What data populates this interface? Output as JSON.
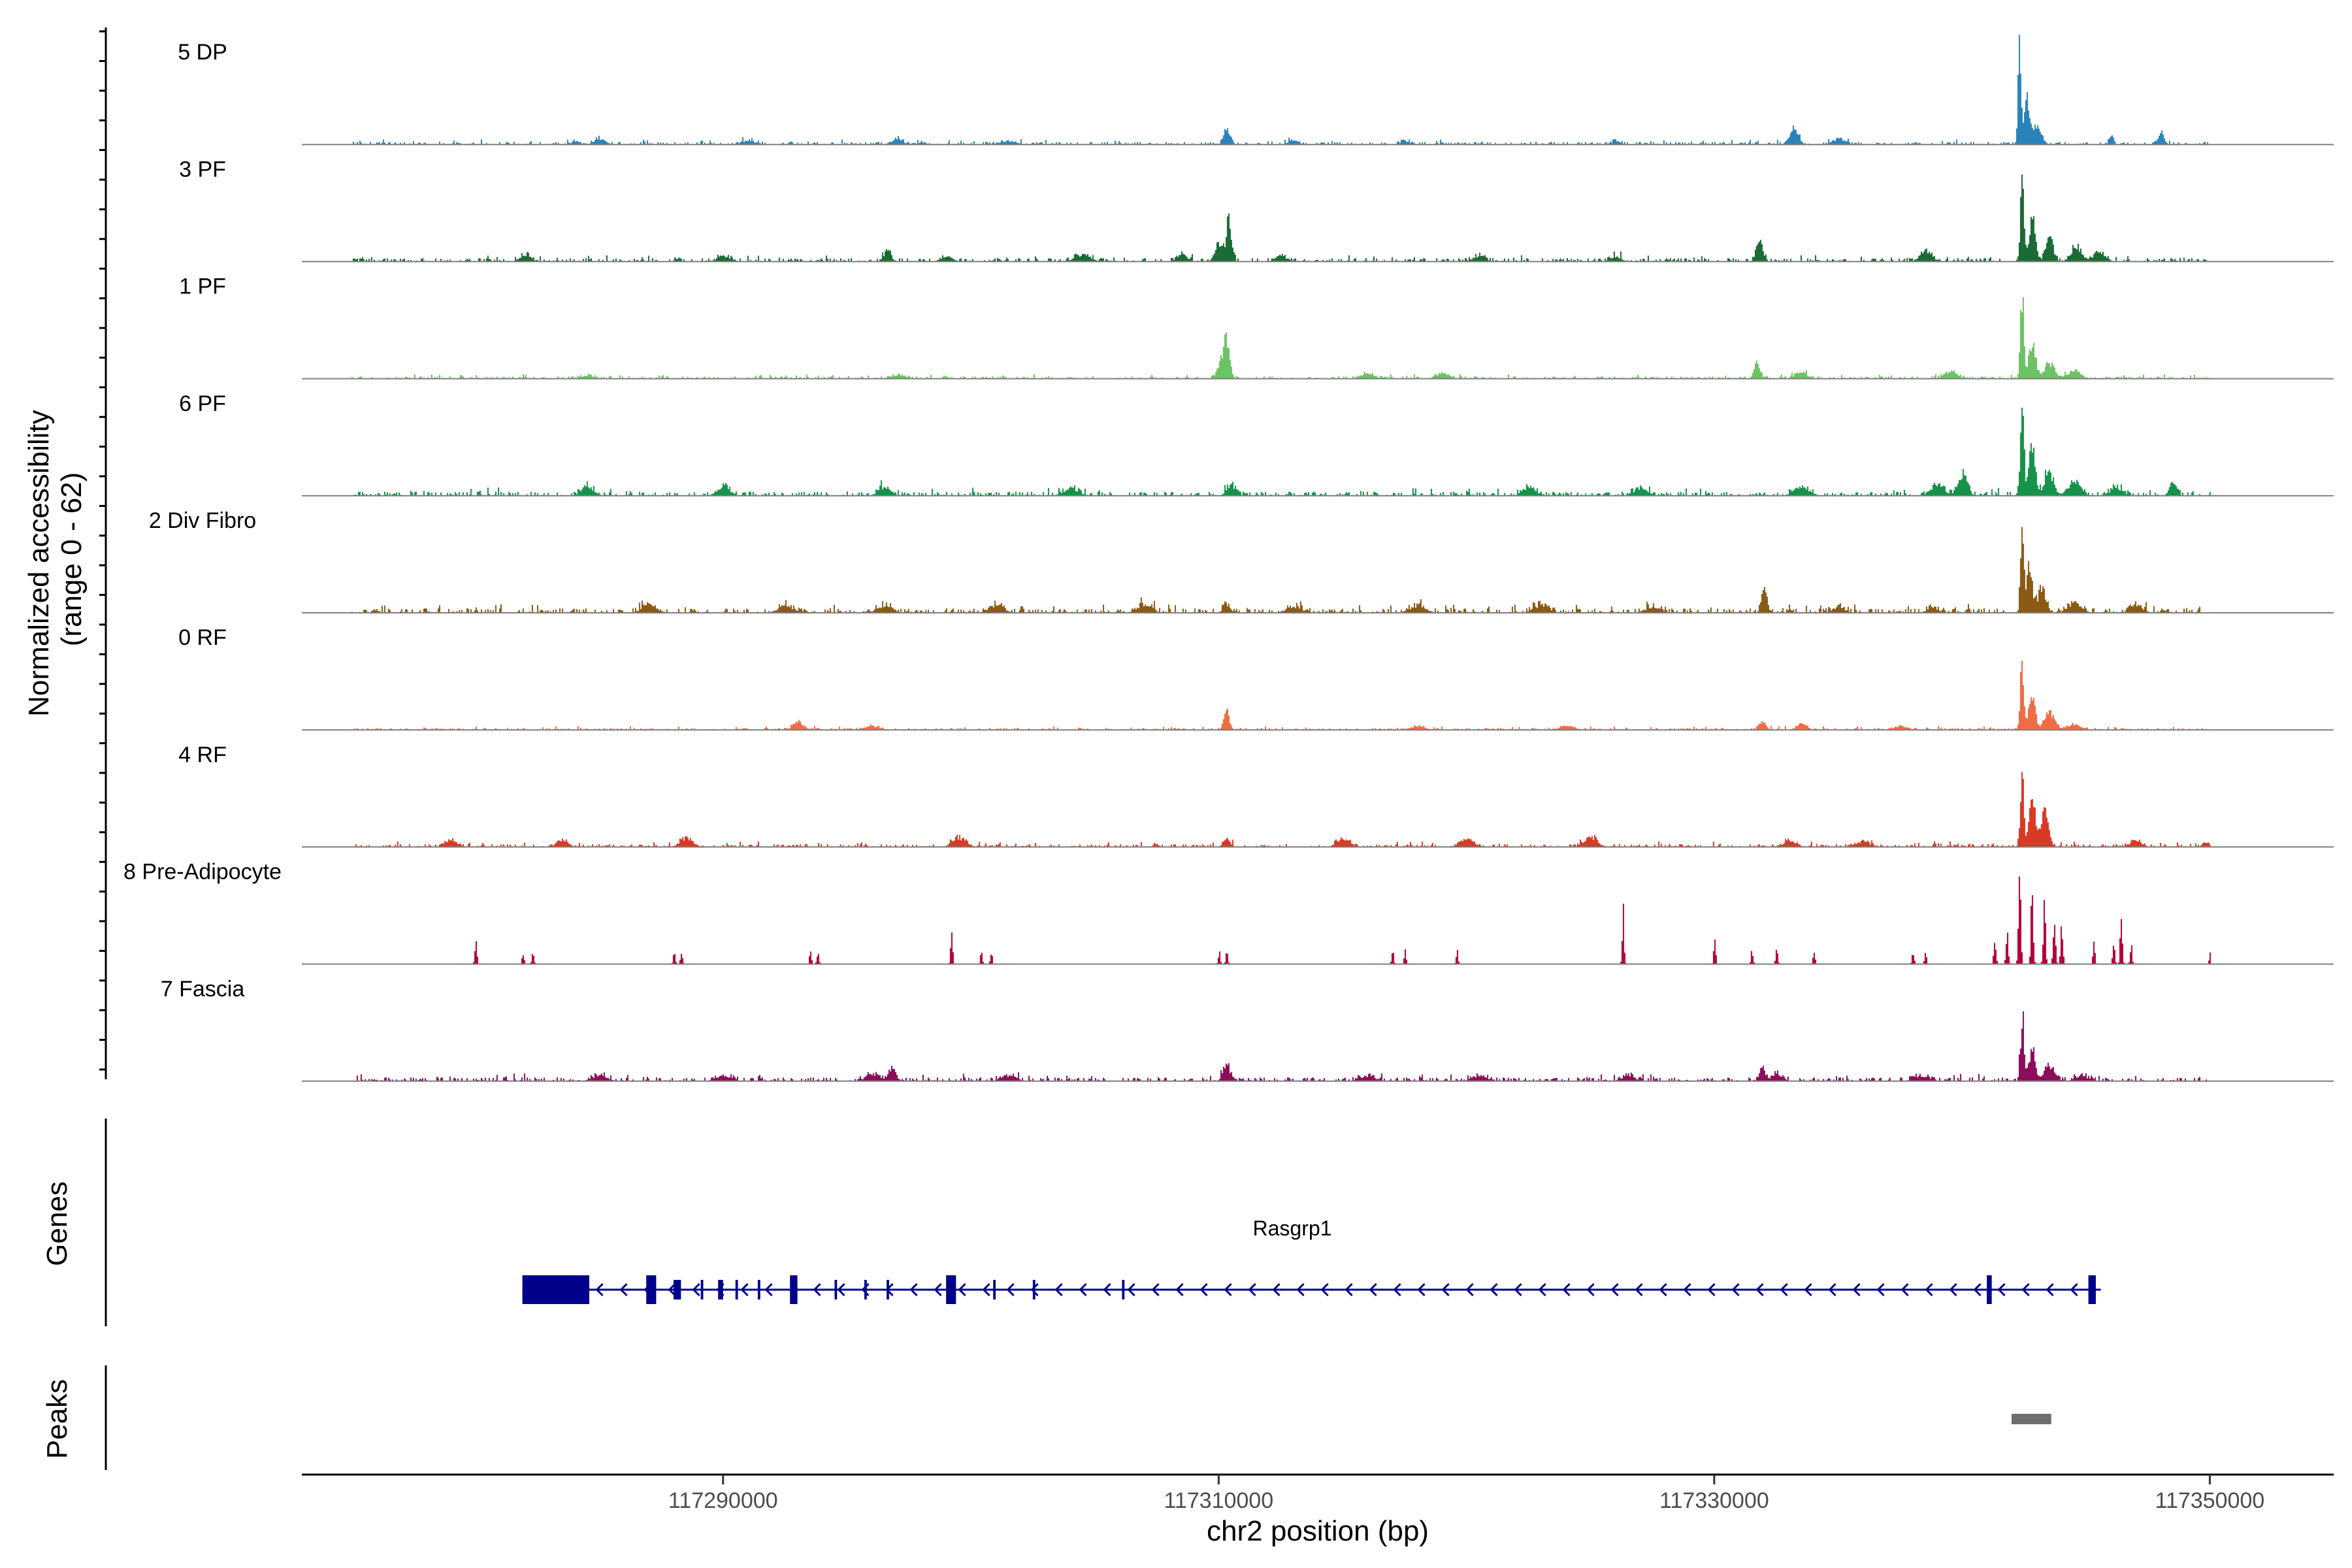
{
  "chart_data": {
    "type": "area",
    "coverage": {
      "ylabel_line1": "Normalized accessibility",
      "ylabel_line2": "(range 0 - 62)",
      "ylim": [
        0,
        62
      ],
      "xlim": [
        117273000,
        117355000
      ],
      "tracks": [
        {
          "name": "5 DP",
          "color": "#2B83BA",
          "baseline": 0.8,
          "peaks": [
            [
              117342300,
              62,
              60
            ],
            [
              117342600,
              25,
              110
            ],
            [
              117343000,
              9,
              180
            ],
            [
              117310300,
              9,
              130
            ],
            [
              117333200,
              9,
              160
            ],
            [
              117335000,
              3,
              250
            ],
            [
              117348000,
              7,
              120
            ],
            [
              117346000,
              4,
              100
            ],
            [
              117291000,
              2,
              300
            ],
            [
              117301500,
              2,
              300
            ],
            [
              117297000,
              3,
              200
            ],
            [
              117313000,
              2,
              200
            ],
            [
              117285000,
              3,
              220
            ],
            [
              117317500,
              2,
              200
            ],
            [
              117326000,
              2,
              180
            ],
            [
              117284000,
              2,
              150
            ]
          ]
        },
        {
          "name": "3 PF",
          "color": "#1B6B35",
          "baseline": 1.1,
          "peaks": [
            [
              117342400,
              42,
              70
            ],
            [
              117342800,
              22,
              130
            ],
            [
              117343500,
              14,
              150
            ],
            [
              117310400,
              22,
              110
            ],
            [
              117310000,
              10,
              160
            ],
            [
              117331800,
              12,
              130
            ],
            [
              117338500,
              6,
              220
            ],
            [
              117344600,
              8,
              200
            ],
            [
              117345500,
              5,
              260
            ],
            [
              117304500,
              4,
              300
            ],
            [
              117308500,
              4,
              200
            ],
            [
              117296600,
              6,
              150
            ],
            [
              117290000,
              3,
              250
            ],
            [
              117312500,
              3,
              250
            ],
            [
              117299000,
              3,
              220
            ],
            [
              117326000,
              3,
              200
            ],
            [
              117282000,
              3,
              240
            ],
            [
              117320500,
              3,
              240
            ]
          ]
        },
        {
          "name": "1 PF",
          "color": "#6CC364",
          "baseline": 0.7,
          "peaks": [
            [
              117342400,
              45,
              70
            ],
            [
              117342800,
              18,
              150
            ],
            [
              117343500,
              9,
              200
            ],
            [
              117310300,
              17,
              120
            ],
            [
              117310100,
              8,
              180
            ],
            [
              117331700,
              9,
              120
            ],
            [
              117339500,
              4,
              250
            ],
            [
              117344500,
              4,
              260
            ],
            [
              117316000,
              3,
              250
            ],
            [
              117297000,
              2,
              300
            ],
            [
              117319000,
              3,
              250
            ],
            [
              117284500,
              2,
              250
            ],
            [
              117333500,
              3,
              250
            ]
          ]
        },
        {
          "name": "6 PF",
          "color": "#16924B",
          "baseline": 1.3,
          "peaks": [
            [
              117342400,
              55,
              70
            ],
            [
              117342800,
              27,
              120
            ],
            [
              117343500,
              13,
              180
            ],
            [
              117344500,
              8,
              240
            ],
            [
              117340000,
              12,
              180
            ],
            [
              117339000,
              7,
              250
            ],
            [
              117348500,
              8,
              140
            ],
            [
              117310500,
              5,
              200
            ],
            [
              117322500,
              5,
              250
            ],
            [
              117333500,
              5,
              300
            ],
            [
              117290000,
              5,
              250
            ],
            [
              117284500,
              5,
              250
            ],
            [
              117296500,
              4,
              260
            ],
            [
              117327000,
              4,
              280
            ],
            [
              117304000,
              4,
              300
            ],
            [
              117346200,
              4,
              260
            ]
          ]
        },
        {
          "name": "2 Div Fibro",
          "color": "#8B5A14",
          "baseline": 1.4,
          "peaks": [
            [
              117342400,
              58,
              60
            ],
            [
              117342700,
              25,
              110
            ],
            [
              117343200,
              14,
              160
            ],
            [
              117332000,
              14,
              110
            ],
            [
              117310300,
              5,
              140
            ],
            [
              117344500,
              5,
              280
            ],
            [
              117347000,
              4,
              250
            ],
            [
              117287000,
              4,
              300
            ],
            [
              117292500,
              4,
              300
            ],
            [
              117296500,
              4,
              300
            ],
            [
              117301000,
              4,
              300
            ],
            [
              117307000,
              4,
              300
            ],
            [
              117313000,
              3,
              300
            ],
            [
              117318000,
              4,
              300
            ],
            [
              117323000,
              4,
              300
            ],
            [
              117327500,
              3,
              300
            ],
            [
              117335000,
              3,
              260
            ],
            [
              117338800,
              3,
              220
            ]
          ]
        },
        {
          "name": "0 RF",
          "color": "#F06C45",
          "baseline": 0.6,
          "peaks": [
            [
              117342400,
              40,
              70
            ],
            [
              117342800,
              17,
              130
            ],
            [
              117343500,
              9,
              200
            ],
            [
              117310300,
              11,
              110
            ],
            [
              117293000,
              4,
              220
            ],
            [
              117331900,
              5,
              140
            ],
            [
              117333500,
              3,
              200
            ],
            [
              117344500,
              3,
              300
            ],
            [
              117296000,
              2,
              300
            ],
            [
              117318000,
              2,
              300
            ],
            [
              117324000,
              2,
              300
            ],
            [
              117337500,
              2,
              300
            ]
          ]
        },
        {
          "name": "4 RF",
          "color": "#D93A26",
          "baseline": 0.9,
          "peaks": [
            [
              117342400,
              38,
              70
            ],
            [
              117342800,
              25,
              120
            ],
            [
              117343300,
              20,
              150
            ],
            [
              117310300,
              4,
              140
            ],
            [
              117279000,
              4,
              220
            ],
            [
              117283500,
              4,
              220
            ],
            [
              117288500,
              5,
              250
            ],
            [
              117299500,
              5,
              250
            ],
            [
              117315000,
              5,
              250
            ],
            [
              117320000,
              5,
              250
            ],
            [
              117325000,
              5,
              260
            ],
            [
              117333000,
              3,
              280
            ],
            [
              117336000,
              3,
              280
            ],
            [
              117347000,
              3,
              250
            ],
            [
              117349800,
              3,
              120
            ]
          ]
        },
        {
          "name": "8 Pre-Adipocyte",
          "color": "#B4003B",
          "baseline": 0,
          "peaks": [
            [
              117342300,
              52,
              45
            ],
            [
              117342800,
              40,
              45
            ],
            [
              117343300,
              30,
              45
            ],
            [
              117343700,
              25,
              45
            ],
            [
              117344000,
              20,
              45
            ],
            [
              117341800,
              15,
              45
            ],
            [
              117341300,
              12,
              45
            ],
            [
              117346400,
              28,
              40
            ],
            [
              117346100,
              12,
              40
            ],
            [
              117346800,
              10,
              40
            ],
            [
              117345300,
              12,
              40
            ],
            [
              117326300,
              28,
              40
            ],
            [
              117280000,
              15,
              40
            ],
            [
              117281900,
              6,
              40
            ],
            [
              117282300,
              6,
              40
            ],
            [
              117288000,
              7,
              40
            ],
            [
              117288300,
              7,
              40
            ],
            [
              117293500,
              7,
              40
            ],
            [
              117293800,
              7,
              40
            ],
            [
              117299200,
              15,
              40
            ],
            [
              117300400,
              7,
              40
            ],
            [
              117300800,
              7,
              40
            ],
            [
              117310000,
              7,
              40
            ],
            [
              117310300,
              7,
              40
            ],
            [
              117317000,
              7,
              40
            ],
            [
              117317500,
              7,
              40
            ],
            [
              117319600,
              7,
              40
            ],
            [
              117330000,
              15,
              40
            ],
            [
              117331500,
              7,
              40
            ],
            [
              117332500,
              10,
              40
            ],
            [
              117334000,
              7,
              40
            ],
            [
              117338000,
              7,
              40
            ],
            [
              117338500,
              7,
              40
            ],
            [
              117350000,
              7,
              40
            ]
          ]
        },
        {
          "name": "7 Fascia",
          "color": "#8B0D5C",
          "baseline": 1.2,
          "peaks": [
            [
              117342400,
              35,
              70
            ],
            [
              117342800,
              18,
              130
            ],
            [
              117343500,
              9,
              200
            ],
            [
              117296800,
              7,
              150
            ],
            [
              117310300,
              8,
              150
            ],
            [
              117296000,
              4,
              260
            ],
            [
              117331900,
              8,
              110
            ],
            [
              117332500,
              4,
              220
            ],
            [
              117326500,
              3,
              250
            ],
            [
              117344800,
              3,
              260
            ],
            [
              117338300,
              3,
              280
            ],
            [
              117285000,
              3,
              300
            ],
            [
              117290000,
              3,
              300
            ],
            [
              117301500,
              3,
              300
            ],
            [
              117316000,
              3,
              300
            ],
            [
              117320500,
              3,
              300
            ]
          ]
        }
      ]
    },
    "genes": {
      "ylabel": "Genes",
      "name": "Rasgrp1",
      "color": "#00008B",
      "strand": "-",
      "start": 117281900,
      "end": 117345600,
      "exons": [
        [
          117281900,
          117284600,
          true
        ],
        [
          117286900,
          117287300,
          true
        ],
        [
          117288000,
          117288300,
          false
        ],
        [
          117289100,
          117289200,
          false
        ],
        [
          117289800,
          117290000,
          false
        ],
        [
          117290500,
          117290600,
          false
        ],
        [
          117291400,
          117291500,
          false
        ],
        [
          117292700,
          117293000,
          true
        ],
        [
          117294500,
          117294600,
          false
        ],
        [
          117295700,
          117295800,
          false
        ],
        [
          117296600,
          117296700,
          false
        ],
        [
          117299000,
          117299400,
          true
        ],
        [
          117300900,
          117301000,
          false
        ],
        [
          117302500,
          117302600,
          false
        ],
        [
          117306100,
          117306200,
          false
        ],
        [
          117341000,
          117341200,
          true
        ],
        [
          117345100,
          117345400,
          true
        ]
      ]
    },
    "peaks": {
      "ylabel": "Peaks",
      "color": "#6E6E6E",
      "regions": [
        [
          117342000,
          117343600
        ]
      ]
    },
    "x_axis": {
      "xlabel": "chr2 position (bp)",
      "ticks": [
        117290000,
        117310000,
        117330000,
        117350000
      ]
    }
  }
}
